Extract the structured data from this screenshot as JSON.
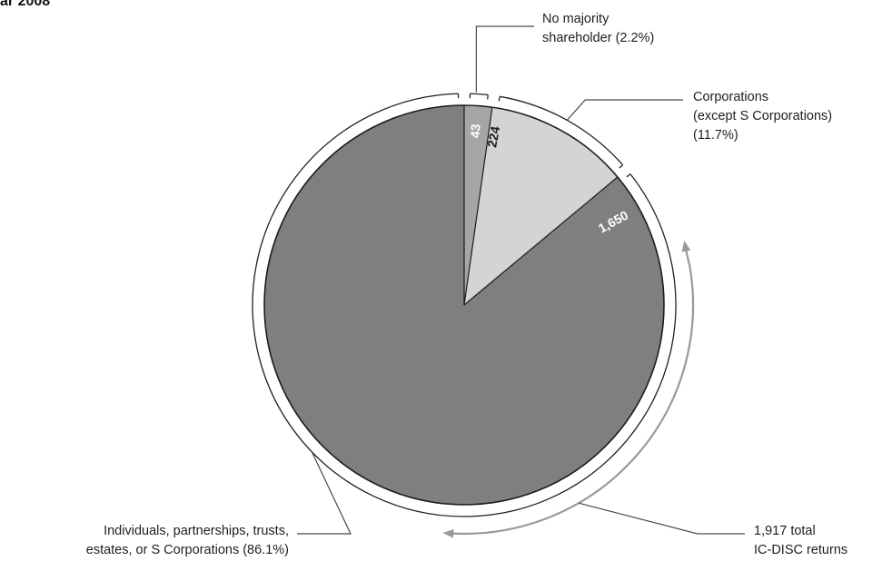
{
  "header": {
    "title": "ar 2008"
  },
  "colors": {
    "individuals": "#7f7f7f",
    "corporations": "#d4d4d4",
    "no_majority": "#a6a6a6",
    "outline": "#1c1c1c",
    "arrow": "#999999",
    "leader": "#4a4a4a"
  },
  "chart_data": {
    "type": "pie",
    "title": "ar 2008",
    "total": 1917,
    "slices": [
      {
        "key": "individuals",
        "value": 1650,
        "value_label": "1,650",
        "percent": 86.1,
        "label_lines": [
          "Individuals, partnerships, trusts,",
          "estates, or S Corporations (86.1%)"
        ]
      },
      {
        "key": "no_majority",
        "value": 43,
        "value_label": "43",
        "percent": 2.2,
        "label_lines": [
          "No majority",
          "shareholder (2.2%)"
        ]
      },
      {
        "key": "corporations",
        "value": 224,
        "value_label": "224",
        "percent": 11.7,
        "label_lines": [
          "Corporations",
          "(except S Corporations)",
          "(11.7%)"
        ]
      }
    ],
    "total_label_lines": [
      "1,917 total",
      "IC-DISC returns"
    ]
  }
}
